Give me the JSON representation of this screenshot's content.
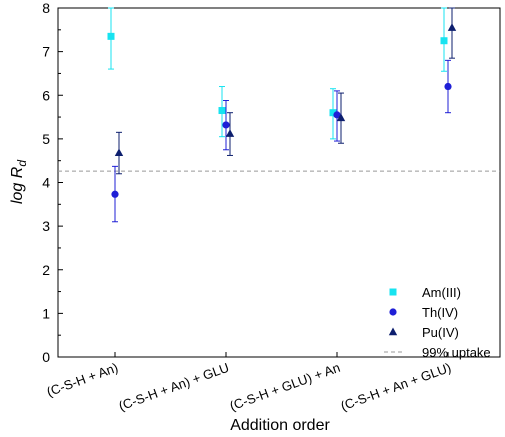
{
  "chart_data": {
    "type": "scatter",
    "xlabel": "Addition order",
    "ylabel_main": "log R",
    "ylabel_sub": "d",
    "ylim": [
      0,
      8
    ],
    "yticks": [
      "0",
      "1",
      "2",
      "3",
      "4",
      "5",
      "6",
      "7",
      "8"
    ],
    "categories": [
      "(C-S-H + An)",
      "(C-S-H + An) + GLU",
      "(C-S-H + GLU) + An",
      "(C-S-H + An + GLU)"
    ],
    "series": [
      {
        "name": "Am(III)",
        "marker": "square",
        "color": "#17e3f0",
        "values": [
          7.35,
          5.65,
          5.6,
          7.25
        ],
        "err_low": [
          6.6,
          5.05,
          5.0,
          6.55
        ],
        "err_high": [
          8.0,
          6.2,
          6.15,
          8.0
        ]
      },
      {
        "name": "Th(IV)",
        "marker": "circle",
        "color": "#1f1fd6",
        "values": [
          3.73,
          5.32,
          5.55,
          6.2
        ],
        "err_low": [
          3.1,
          4.75,
          4.95,
          5.6
        ],
        "err_high": [
          4.37,
          5.88,
          6.1,
          6.8
        ]
      },
      {
        "name": "Pu(IV)",
        "marker": "triangle",
        "color": "#0d1f6e",
        "values": [
          4.68,
          5.12,
          5.48,
          7.55
        ],
        "err_low": [
          4.2,
          4.62,
          4.9,
          6.85
        ],
        "err_high": [
          5.15,
          5.6,
          6.05,
          8.0
        ]
      }
    ],
    "reference_line": {
      "name": "99% uptake",
      "value": 4.26,
      "color": "#999999",
      "style": "dashed"
    },
    "legend_position": "bottom-right",
    "grid": false
  }
}
